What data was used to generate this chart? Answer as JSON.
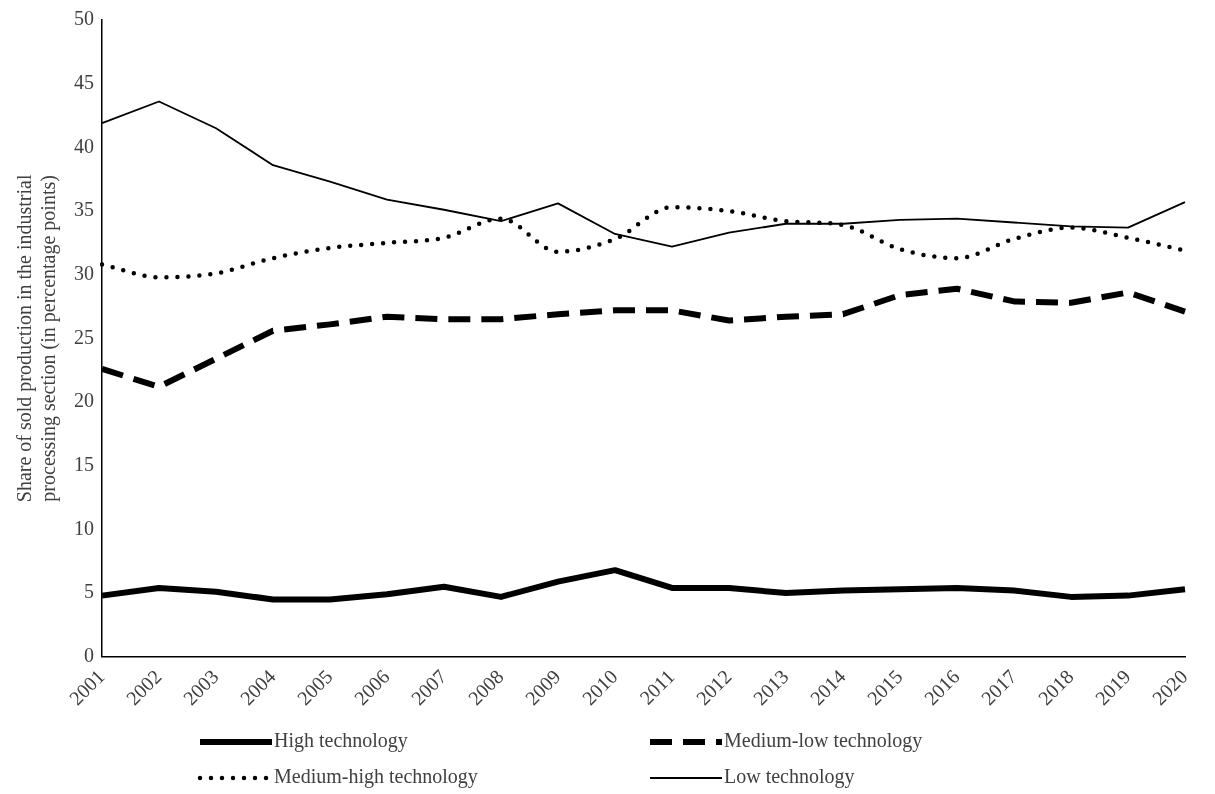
{
  "chart_data": {
    "type": "line",
    "ylabel": "Share of sold production in the industrial processing section (in percentage points)",
    "categories": [
      "2001",
      "2002",
      "2003",
      "2004",
      "2005",
      "2006",
      "2007",
      "2008",
      "2009",
      "2010",
      "2011",
      "2012",
      "2013",
      "2014",
      "2015",
      "2016",
      "2017",
      "2018",
      "2019",
      "2020"
    ],
    "series": [
      {
        "name": "High technology",
        "color": "#000000",
        "line_style": "solid",
        "values": [
          4.8,
          5.4,
          5.1,
          4.5,
          4.5,
          4.9,
          5.5,
          4.7,
          5.9,
          6.8,
          5.4,
          5.4,
          5.0,
          5.2,
          5.3,
          5.4,
          5.2,
          4.7,
          4.8,
          5.3
        ]
      },
      {
        "name": "Medium-low technology",
        "color": "#000000",
        "line_style": "dashed",
        "values": [
          22.6,
          21.2,
          23.4,
          25.6,
          26.1,
          26.7,
          26.5,
          26.5,
          26.9,
          27.2,
          27.2,
          26.4,
          26.7,
          26.9,
          28.4,
          28.9,
          27.9,
          27.8,
          28.6,
          27.1
        ]
      },
      {
        "name": "Medium-high technology",
        "color": "#000000",
        "line_style": "dotted",
        "values": [
          30.8,
          29.8,
          30.1,
          31.3,
          32.1,
          32.5,
          32.9,
          34.4,
          31.8,
          32.8,
          35.3,
          35.0,
          34.2,
          33.9,
          32.0,
          31.3,
          32.8,
          33.7,
          32.9,
          31.9
        ]
      },
      {
        "name": "Low technology",
        "color": "#000000",
        "line_style": "solid",
        "values": [
          41.9,
          43.6,
          41.5,
          38.6,
          37.3,
          35.9,
          35.1,
          34.2,
          35.6,
          33.2,
          32.2,
          33.3,
          34.0,
          34.0,
          34.3,
          34.4,
          34.1,
          33.8,
          33.7,
          35.7
        ]
      }
    ],
    "ylim": [
      0,
      50
    ],
    "yticks": [
      0,
      5,
      10,
      15,
      20,
      25,
      30,
      35,
      40,
      45,
      50
    ],
    "grid": false,
    "legend": "bottom",
    "marker": "none"
  }
}
